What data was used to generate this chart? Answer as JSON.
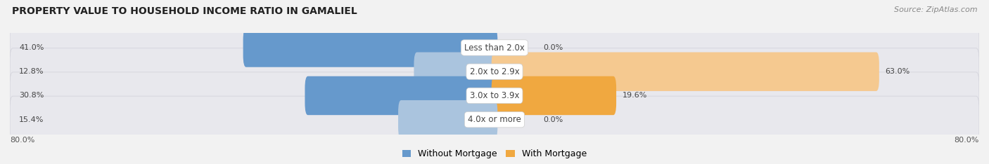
{
  "title": "PROPERTY VALUE TO HOUSEHOLD INCOME RATIO IN GAMALIEL",
  "source": "Source: ZipAtlas.com",
  "categories": [
    "Less than 2.0x",
    "2.0x to 2.9x",
    "3.0x to 3.9x",
    "4.0x or more"
  ],
  "without_mortgage": [
    41.0,
    12.8,
    30.8,
    15.4
  ],
  "with_mortgage": [
    0.0,
    63.0,
    19.6,
    0.0
  ],
  "color_without_dark": "#6699cc",
  "color_without_light": "#aac4de",
  "color_with_dark": "#f0a840",
  "color_with_light": "#f5c990",
  "xlim_left": -80.0,
  "xlim_right": 80.0,
  "x_left_label": "80.0%",
  "x_right_label": "80.0%",
  "bar_height": 0.62,
  "row_bg_color": "#e8e8ed",
  "background_color": "#f2f2f2",
  "title_fontsize": 10,
  "label_fontsize": 8,
  "category_fontsize": 8.5,
  "legend_fontsize": 9,
  "source_fontsize": 8
}
